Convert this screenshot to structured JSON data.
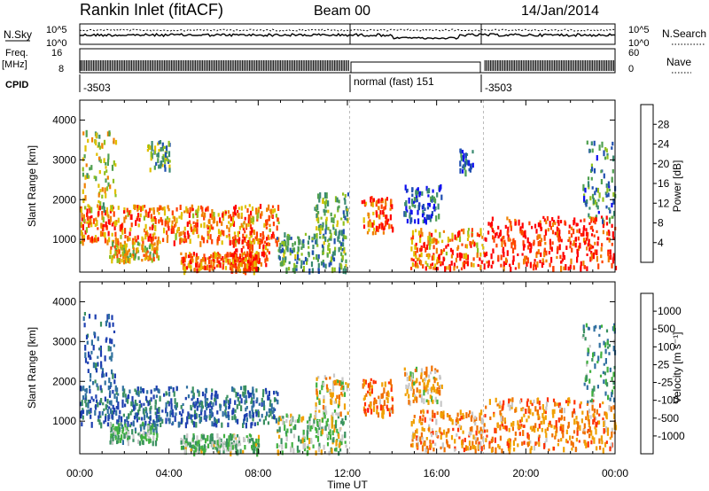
{
  "header": {
    "title": "Rankin Inlet (fitACF)",
    "beam": "Beam 00",
    "date": "14/Jan/2014"
  },
  "status_panels": {
    "noise": {
      "left_label": "N.Sky",
      "right_label": "N.Search",
      "left_ticks": [
        "10^5",
        "10^0"
      ],
      "right_ticks": [
        "10^5",
        "10^0"
      ]
    },
    "freq": {
      "left_label_line1": "Freq.",
      "left_label_line2": "[MHz]",
      "left_ticks": [
        "16",
        "8"
      ],
      "right_label": "Nave",
      "right_ticks": [
        "60",
        "0"
      ]
    },
    "cpid": {
      "label": "CPID",
      "segments": [
        {
          "start_hour": 0,
          "end_hour": 12.1,
          "text": "-3503"
        },
        {
          "start_hour": 12.1,
          "end_hour": 18.1,
          "text": "normal (fast) 151"
        },
        {
          "start_hour": 18.1,
          "end_hour": 24,
          "text": "-3503"
        }
      ]
    }
  },
  "x_axis": {
    "label": "Time UT",
    "ticks": [
      "00:00",
      "04:00",
      "08:00",
      "12:00",
      "16:00",
      "20:00",
      "00:00"
    ]
  },
  "chart_data": [
    {
      "type": "heatmap",
      "panel": "power",
      "xlabel": "Time UT",
      "ylabel": "Slant Range [km]",
      "xlim_hours": [
        0,
        24
      ],
      "ylim": [
        180,
        4500
      ],
      "yticks": [
        "1000",
        "2000",
        "3000",
        "4000"
      ],
      "colorbar": {
        "label": "Power [dB]",
        "ticks": [
          "4",
          "8",
          "12",
          "16",
          "20",
          "24",
          "28"
        ],
        "range": [
          0,
          32
        ],
        "colors": [
          "#1010f0",
          "#2050b0",
          "#3a8a70",
          "#50a050",
          "#90c020",
          "#e0c000",
          "#f08000",
          "#ff4000",
          "#ff0000"
        ]
      },
      "regions": [
        {
          "t": [
            0.0,
            8.9
          ],
          "r": [
            950,
            1900
          ],
          "level": 0.75
        },
        {
          "t": [
            0.1,
            1.6
          ],
          "r": [
            1800,
            3800
          ],
          "level": 0.5
        },
        {
          "t": [
            1.3,
            3.5
          ],
          "r": [
            500,
            1000
          ],
          "level": 0.6
        },
        {
          "t": [
            4.5,
            8.0
          ],
          "r": [
            250,
            700
          ],
          "level": 0.8
        },
        {
          "t": [
            6.8,
            8.5
          ],
          "r": [
            400,
            1100
          ],
          "level": 0.85
        },
        {
          "t": [
            8.8,
            11.9
          ],
          "r": [
            250,
            1200
          ],
          "level": 0.35
        },
        {
          "t": [
            10.5,
            12.0
          ],
          "r": [
            1200,
            2200
          ],
          "level": 0.4
        },
        {
          "t": [
            12.6,
            14.0
          ],
          "r": [
            1200,
            2100
          ],
          "level": 0.8
        },
        {
          "t": [
            14.8,
            18.1
          ],
          "r": [
            300,
            1300
          ],
          "level": 0.75
        },
        {
          "t": [
            14.5,
            16.2
          ],
          "r": [
            1500,
            2400
          ],
          "level": 0.2
        },
        {
          "t": [
            17.0,
            17.6
          ],
          "r": [
            2700,
            3300
          ],
          "level": 0.15
        },
        {
          "t": [
            18.1,
            24.0
          ],
          "r": [
            300,
            1600
          ],
          "level": 0.9
        },
        {
          "t": [
            22.5,
            24.0
          ],
          "r": [
            1500,
            3500
          ],
          "level": 0.3
        },
        {
          "t": [
            3.0,
            4.0
          ],
          "r": [
            2800,
            3500
          ],
          "level": 0.4
        }
      ]
    },
    {
      "type": "heatmap",
      "panel": "velocity",
      "xlabel": "Time UT",
      "ylabel": "Slant Range [km]",
      "xlim_hours": [
        0,
        24
      ],
      "ylim": [
        180,
        4500
      ],
      "yticks": [
        "1000",
        "2000",
        "3000",
        "4000"
      ],
      "colorbar": {
        "label": "Velocity [m s⁻¹]",
        "ticks": [
          "1000",
          "500",
          "100",
          "25",
          "-25",
          "-100",
          "-500",
          "-1000"
        ],
        "colors": [
          "#1e40b0",
          "#3070a0",
          "#3a9060",
          "#40b040",
          "#c8c8c8",
          "#f0a000",
          "#f07000",
          "#ff3000",
          "#ff0000"
        ]
      },
      "regions": [
        {
          "t": [
            0.0,
            8.9
          ],
          "r": [
            950,
            1900
          ],
          "level": 0.15
        },
        {
          "t": [
            0.1,
            1.6
          ],
          "r": [
            1800,
            3800
          ],
          "level": 0.1
        },
        {
          "t": [
            1.3,
            3.5
          ],
          "r": [
            500,
            1000
          ],
          "level": 0.35
        },
        {
          "t": [
            4.5,
            8.0
          ],
          "r": [
            250,
            700
          ],
          "level": 0.4
        },
        {
          "t": [
            8.8,
            11.9
          ],
          "r": [
            250,
            1200
          ],
          "level": 0.45
        },
        {
          "t": [
            10.5,
            12.0
          ],
          "r": [
            1200,
            2200
          ],
          "level": 0.55
        },
        {
          "t": [
            12.6,
            14.0
          ],
          "r": [
            1200,
            2100
          ],
          "level": 0.72
        },
        {
          "t": [
            14.8,
            18.1
          ],
          "r": [
            300,
            1300
          ],
          "level": 0.65
        },
        {
          "t": [
            14.5,
            16.2
          ],
          "r": [
            1500,
            2400
          ],
          "level": 0.6
        },
        {
          "t": [
            18.1,
            24.0
          ],
          "r": [
            300,
            1600
          ],
          "level": 0.7
        },
        {
          "t": [
            22.5,
            24.0
          ],
          "r": [
            1500,
            3500
          ],
          "level": 0.3
        }
      ]
    }
  ]
}
